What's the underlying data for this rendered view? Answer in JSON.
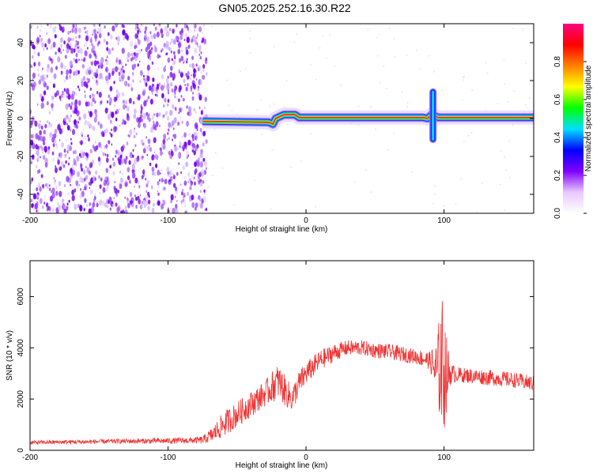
{
  "title": "GN05.2025.252.16.30.R22",
  "chart_data": [
    {
      "type": "heatmap",
      "title": "GN05.2025.252.16.30.R22",
      "xlabel": "Height of straight line (km)",
      "ylabel": "Frequency (Hz)",
      "xlim": [
        -200,
        165
      ],
      "ylim": [
        -50,
        50
      ],
      "xticks": [
        -200,
        -100,
        0,
        100
      ],
      "yticks": [
        -40,
        -20,
        0,
        20,
        40
      ],
      "xtick_labels": [
        "-200",
        "-100",
        "0",
        "100"
      ],
      "ytick_labels": [
        "-40",
        "-20",
        "0",
        "20",
        "40"
      ],
      "noise_region": {
        "x_from": -200,
        "x_to": -72
      },
      "main_line": [
        {
          "x": -75,
          "y": -1.5
        },
        {
          "x": -27,
          "y": -2
        },
        {
          "x": -24,
          "y": -3
        },
        {
          "x": -22,
          "y": 0
        },
        {
          "x": -16,
          "y": 2
        },
        {
          "x": -8,
          "y": 2
        },
        {
          "x": -5,
          "y": 0.5
        },
        {
          "x": 85,
          "y": 0.5
        },
        {
          "x": 88,
          "y": 0
        },
        {
          "x": 91,
          "y": 2
        },
        {
          "x": 96,
          "y": 0.5
        },
        {
          "x": 165,
          "y": 0.5
        }
      ],
      "burst": {
        "x": 92,
        "y_min": -11,
        "y_max": 14
      },
      "colorbar": {
        "label": "Normalized spectral amplitude",
        "range": [
          0,
          1
        ],
        "ticks": [
          "0.0",
          "0.2",
          "0.4",
          "0.6",
          "0.8"
        ],
        "colors": [
          "#ffffff",
          "#e8c8ff",
          "#8000ff",
          "#0000ff",
          "#00e0ff",
          "#00ff00",
          "#ffff00",
          "#ff8000",
          "#ff0000",
          "#ff0080"
        ]
      }
    },
    {
      "type": "line",
      "xlabel": "Height of straight line (km)",
      "ylabel": "SNR (10 * v/v)",
      "xlim": [
        -200,
        165
      ],
      "ylim": [
        0,
        7400
      ],
      "xticks": [
        -200,
        -100,
        0,
        100
      ],
      "yticks": [
        0,
        2000,
        4000,
        6000
      ],
      "xtick_labels": [
        "-200",
        "-100",
        "0",
        "100"
      ],
      "ytick_labels": [
        "0",
        "2000",
        "4000",
        "6000"
      ],
      "color": "#ee3333",
      "series": [
        {
          "name": "SNR",
          "x": [
            -200,
            -180,
            -160,
            -140,
            -120,
            -100,
            -85,
            -75,
            -68,
            -60,
            -50,
            -40,
            -30,
            -20,
            -15,
            -10,
            -5,
            0,
            10,
            20,
            30,
            40,
            50,
            60,
            70,
            80,
            90,
            95,
            98,
            100,
            102,
            105,
            110,
            120,
            130,
            140,
            150,
            165
          ],
          "y": [
            300,
            320,
            330,
            350,
            360,
            370,
            380,
            400,
            600,
            1000,
            1400,
            1800,
            2200,
            2700,
            2300,
            2000,
            2600,
            3000,
            3500,
            3800,
            4000,
            4000,
            3900,
            3850,
            3750,
            3650,
            3500,
            3000,
            3500,
            3200,
            3000,
            3000,
            2950,
            2900,
            2850,
            2800,
            2750,
            2600
          ],
          "noise": [
            80,
            80,
            90,
            90,
            100,
            110,
            120,
            150,
            300,
            500,
            500,
            500,
            500,
            700,
            600,
            500,
            500,
            450,
            400,
            350,
            300,
            300,
            300,
            300,
            300,
            300,
            350,
            1400,
            2600,
            2600,
            1400,
            400,
            300,
            300,
            300,
            300,
            300,
            300
          ]
        }
      ]
    }
  ]
}
